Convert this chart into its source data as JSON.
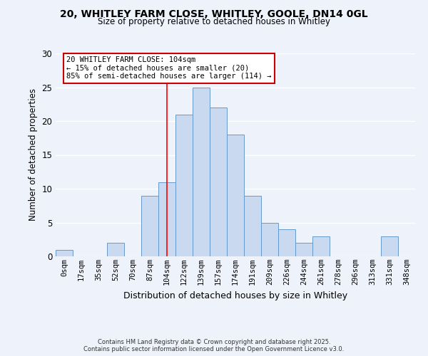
{
  "title1": "20, WHITLEY FARM CLOSE, WHITLEY, GOOLE, DN14 0GL",
  "title2": "Size of property relative to detached houses in Whitley",
  "xlabel": "Distribution of detached houses by size in Whitley",
  "ylabel": "Number of detached properties",
  "bin_labels": [
    "0sqm",
    "17sqm",
    "35sqm",
    "52sqm",
    "70sqm",
    "87sqm",
    "104sqm",
    "122sqm",
    "139sqm",
    "157sqm",
    "174sqm",
    "191sqm",
    "209sqm",
    "226sqm",
    "244sqm",
    "261sqm",
    "278sqm",
    "296sqm",
    "313sqm",
    "331sqm",
    "348sqm"
  ],
  "bar_values": [
    1,
    0,
    0,
    2,
    0,
    9,
    11,
    21,
    25,
    22,
    18,
    9,
    5,
    4,
    2,
    3,
    0,
    0,
    0,
    3,
    0
  ],
  "bar_color": "#c9d9f0",
  "bar_edge_color": "#6699cc",
  "red_line_index": 6,
  "ylim": [
    0,
    30
  ],
  "yticks": [
    0,
    5,
    10,
    15,
    20,
    25,
    30
  ],
  "annotation_line1": "20 WHITLEY FARM CLOSE: 104sqm",
  "annotation_line2": "← 15% of detached houses are smaller (20)",
  "annotation_line3": "85% of semi-detached houses are larger (114) →",
  "annotation_box_color": "#ffffff",
  "annotation_edge_color": "#cc0000",
  "footer1": "Contains HM Land Registry data © Crown copyright and database right 2025.",
  "footer2": "Contains public sector information licensed under the Open Government Licence v3.0.",
  "background_color": "#eef2fb"
}
